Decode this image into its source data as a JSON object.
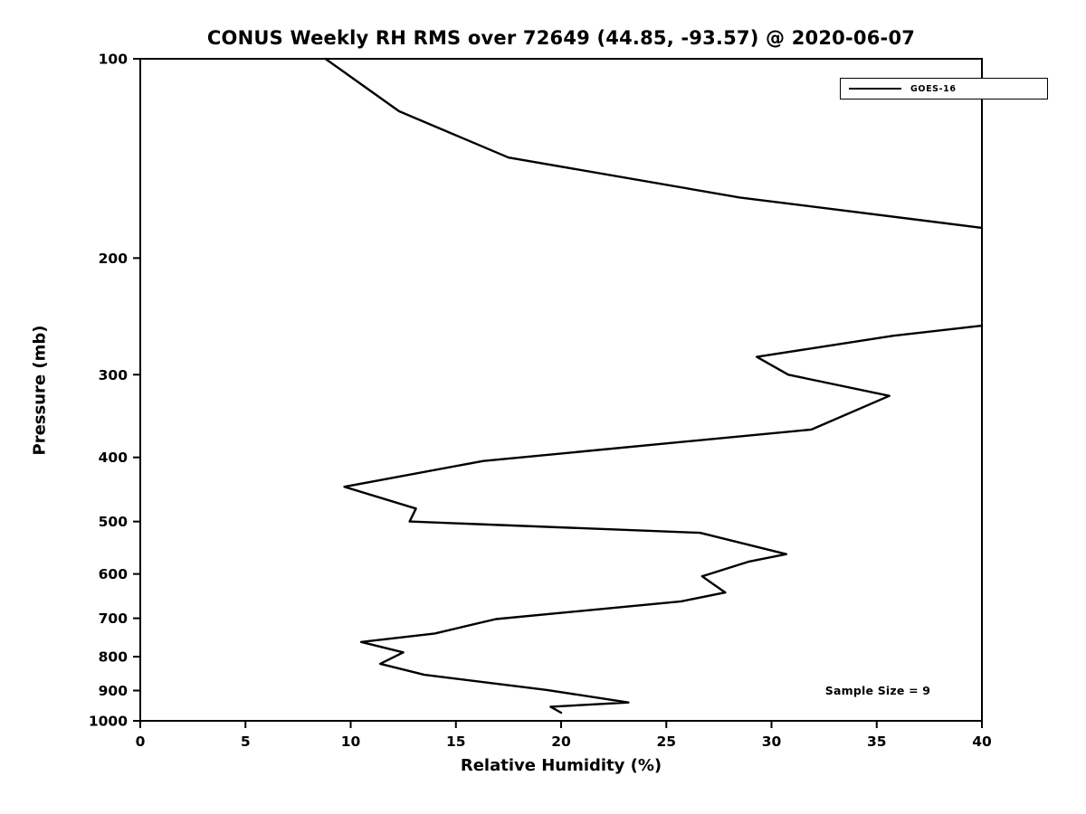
{
  "chart_data": {
    "type": "line",
    "title": "CONUS Weekly RH RMS over 72649 (44.85, -93.57) @ 2020-06-07",
    "xlabel": "Relative Humidity (%)",
    "ylabel": "Pressure (mb)",
    "xlim": [
      0,
      40
    ],
    "ylim": [
      100,
      1000
    ],
    "y_scale": "log",
    "y_inverted": true,
    "grid": false,
    "x_ticks": [
      0,
      5,
      10,
      15,
      20,
      25,
      30,
      35,
      40
    ],
    "y_ticks": [
      100,
      200,
      300,
      400,
      500,
      600,
      700,
      800,
      900,
      1000
    ],
    "legend": {
      "position": "top-right",
      "entries": [
        {
          "label": "GOES-16",
          "color": "#000000"
        }
      ]
    },
    "annotation": {
      "text": "Sample Size = 9"
    },
    "series": [
      {
        "name": "GOES-16",
        "color": "#000000",
        "line_width": 2.4,
        "note": "RH RMS (%) vs pressure (mb); curve exceeds x-axis max (40) between ~180 mb and ~253 mb, so it is clipped at the right edge there",
        "segments": [
          [
            [
              8.8,
              100
            ],
            [
              12.3,
              120
            ],
            [
              17.5,
              141
            ],
            [
              28.5,
              162
            ],
            [
              40,
              180
            ]
          ],
          [
            [
              40,
              253
            ],
            [
              35.8,
              262
            ],
            [
              29.3,
              282
            ],
            [
              30.8,
              300
            ],
            [
              35.6,
              323
            ],
            [
              31.9,
              363
            ],
            [
              16.3,
              405
            ],
            [
              9.7,
              443
            ],
            [
              13.1,
              478
            ],
            [
              12.8,
              500
            ],
            [
              26.6,
              520
            ],
            [
              30.7,
              560
            ],
            [
              28.9,
              575
            ],
            [
              26.7,
              605
            ],
            [
              27.8,
              640
            ],
            [
              25.7,
              660
            ],
            [
              16.9,
              702
            ],
            [
              14.0,
              738
            ],
            [
              10.5,
              760
            ],
            [
              12.5,
              788
            ],
            [
              11.4,
              820
            ],
            [
              13.5,
              852
            ],
            [
              19.3,
              898
            ],
            [
              23.2,
              938
            ],
            [
              19.5,
              952
            ],
            [
              20.0,
              972
            ]
          ]
        ]
      }
    ]
  }
}
